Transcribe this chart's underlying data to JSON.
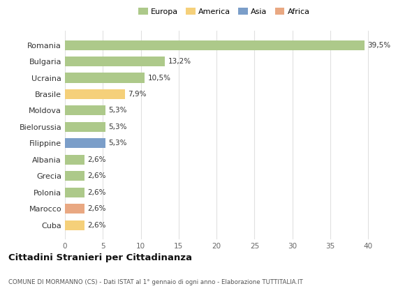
{
  "categories": [
    "Romania",
    "Bulgaria",
    "Ucraina",
    "Brasile",
    "Moldova",
    "Bielorussia",
    "Filippine",
    "Albania",
    "Grecia",
    "Polonia",
    "Marocco",
    "Cuba"
  ],
  "values": [
    39.5,
    13.2,
    10.5,
    7.9,
    5.3,
    5.3,
    5.3,
    2.6,
    2.6,
    2.6,
    2.6,
    2.6
  ],
  "labels": [
    "39,5%",
    "13,2%",
    "10,5%",
    "7,9%",
    "5,3%",
    "5,3%",
    "5,3%",
    "2,6%",
    "2,6%",
    "2,6%",
    "2,6%",
    "2,6%"
  ],
  "colors": [
    "#adc98a",
    "#adc98a",
    "#adc98a",
    "#f5d07a",
    "#adc98a",
    "#adc98a",
    "#7b9ec9",
    "#adc98a",
    "#adc98a",
    "#adc98a",
    "#e9a882",
    "#f5d07a"
  ],
  "legend_labels": [
    "Europa",
    "America",
    "Asia",
    "Africa"
  ],
  "legend_colors": [
    "#adc98a",
    "#f5d07a",
    "#7b9ec9",
    "#e9a882"
  ],
  "xlim": [
    0,
    42
  ],
  "xticks": [
    0,
    5,
    10,
    15,
    20,
    25,
    30,
    35,
    40
  ],
  "title": "Cittadini Stranieri per Cittadinanza",
  "subtitle": "COMUNE DI MORMANNO (CS) - Dati ISTAT al 1° gennaio di ogni anno - Elaborazione TUTTITALIA.IT",
  "bg_color": "#ffffff",
  "grid_color": "#e0e0e0",
  "bar_height": 0.6
}
